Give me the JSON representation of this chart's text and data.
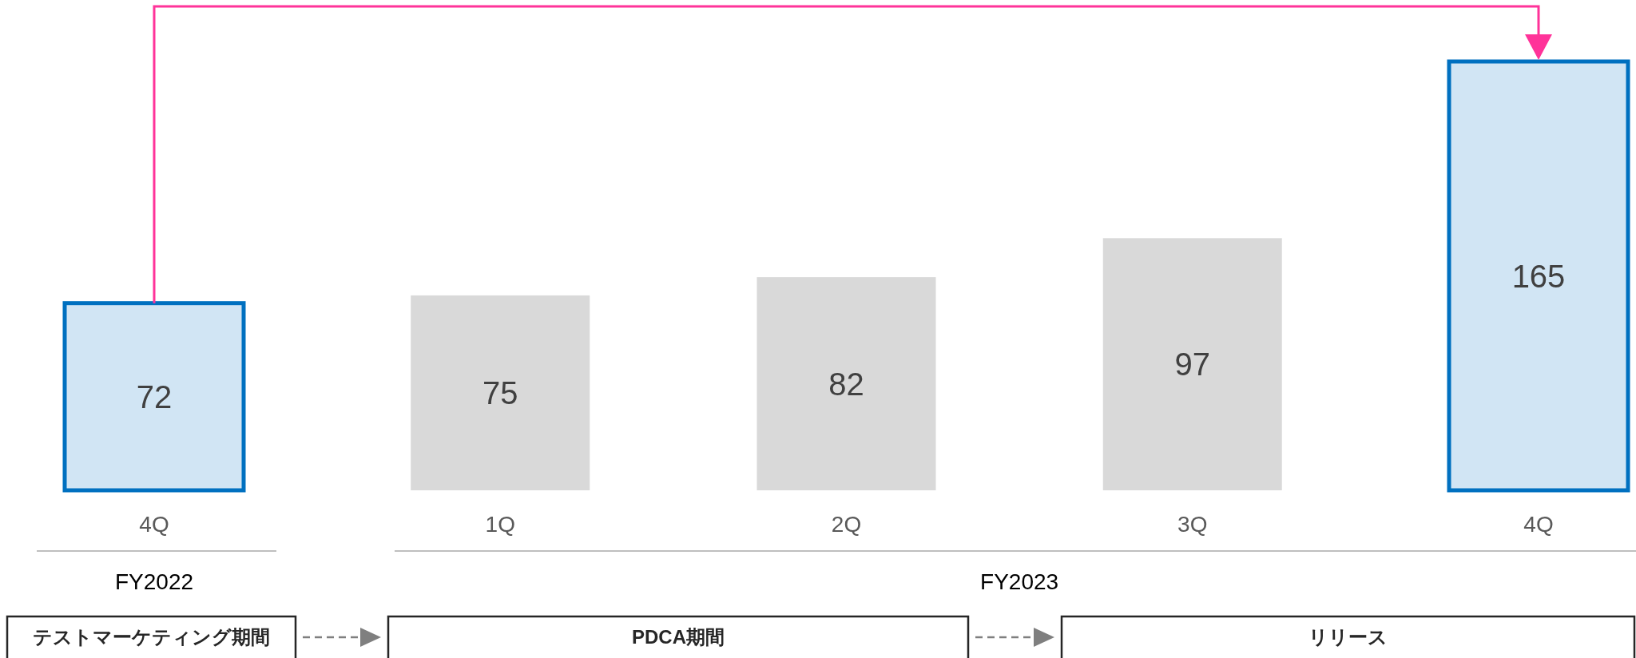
{
  "chart_data": {
    "type": "bar",
    "categories": [
      "4Q",
      "1Q",
      "2Q",
      "3Q",
      "4Q"
    ],
    "series": [
      {
        "color": "#0070c0",
        "values": [
          72,
          null,
          null,
          null,
          165
        ]
      },
      {
        "color": "#d9d9d9",
        "values": [
          null,
          75,
          82,
          97,
          null
        ]
      }
    ],
    "data_labels": true,
    "annotations": [
      "FY2022",
      "FY2023",
      "テストマーケティング期間",
      "PDCA期間",
      "リリース"
    ]
  }
}
